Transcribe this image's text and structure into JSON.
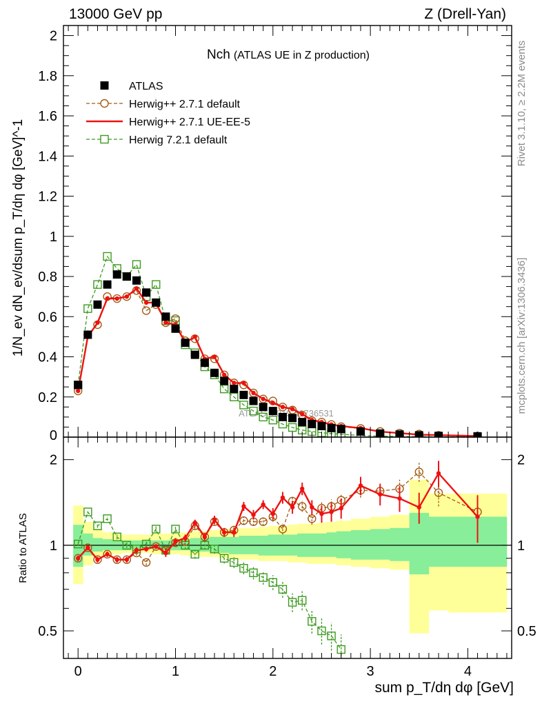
{
  "header": {
    "left": "13000 GeV pp",
    "right": "Z (Drell-Yan)"
  },
  "side_labels": {
    "rivet": "Rivet 3.1.10, ≥ 2.2M events",
    "mcplots": "mcplots.cern.ch [arXiv:1306.3436]"
  },
  "chart_data": [
    {
      "type": "scatter",
      "panel": "main",
      "title_main": "Nch",
      "title_sub": "(ATLAS UE in Z production)",
      "watermark": "ATLAS_2019_I1736531",
      "ylabel": "1/N_ev dN_ev/dsum p_T/dη dφ [GeV]^-1",
      "xlim": [
        -0.15,
        4.45
      ],
      "ylim": [
        0,
        2.05
      ],
      "yticks": [
        0.2,
        0.4,
        0.6,
        0.8,
        1,
        1.2,
        1.4,
        1.6,
        1.8,
        2
      ],
      "ytick_labels": [
        "0.2",
        "0.4",
        "0.6",
        "0.8",
        "1",
        "1.2",
        "1.4",
        "1.6",
        "1.8",
        "2"
      ],
      "partial_tick_label": "0",
      "legend_placement": "top-left",
      "x": [
        0.0,
        0.1,
        0.2,
        0.3,
        0.4,
        0.5,
        0.6,
        0.7,
        0.8,
        0.9,
        1.0,
        1.1,
        1.2,
        1.3,
        1.4,
        1.5,
        1.6,
        1.7,
        1.8,
        1.9,
        2.0,
        2.1,
        2.2,
        2.3,
        2.4,
        2.5,
        2.6,
        2.7,
        2.9,
        3.1,
        3.3,
        3.5,
        3.7,
        4.1
      ],
      "series": [
        {
          "name": "ATLAS",
          "color": "#000000",
          "marker": "square-filled",
          "values": [
            0.26,
            0.51,
            0.66,
            0.76,
            0.81,
            0.8,
            0.78,
            0.72,
            0.67,
            0.6,
            0.54,
            0.47,
            0.41,
            0.37,
            0.32,
            0.28,
            0.24,
            0.21,
            0.18,
            0.15,
            0.13,
            0.1,
            0.095,
            0.075,
            0.065,
            0.055,
            0.045,
            0.04,
            0.028,
            0.018,
            0.013,
            0.009,
            0.006,
            0.004
          ]
        },
        {
          "name": "Herwig++ 2.7.1 default",
          "color": "#a25b12",
          "marker": "circle-open",
          "line": "dashed",
          "values": [
            0.23,
            0.51,
            0.56,
            0.7,
            0.69,
            0.7,
            0.73,
            0.63,
            0.66,
            0.57,
            0.59,
            0.48,
            0.49,
            0.39,
            0.39,
            0.31,
            0.27,
            0.26,
            0.22,
            0.19,
            0.18,
            0.15,
            0.135,
            0.11,
            0.082,
            0.075,
            0.063,
            0.052,
            0.043,
            0.028,
            0.02,
            0.015,
            0.009,
            0.0055
          ]
        },
        {
          "name": "Herwig++ 2.7.1 UE-EE-5",
          "color": "#ee1111",
          "marker": "dot",
          "line": "solid",
          "values": [
            0.23,
            0.5,
            0.57,
            0.69,
            0.69,
            0.7,
            0.74,
            0.67,
            0.67,
            0.57,
            0.56,
            0.47,
            0.5,
            0.39,
            0.4,
            0.31,
            0.27,
            0.27,
            0.22,
            0.19,
            0.17,
            0.15,
            0.14,
            0.115,
            0.085,
            0.075,
            0.063,
            0.055,
            0.045,
            0.027,
            0.02,
            0.012,
            0.01,
            0.005
          ]
        },
        {
          "name": "Herwig 7.2.1 default",
          "color": "#3c9a1e",
          "marker": "square-open",
          "line": "dashed",
          "values": [
            0.26,
            0.64,
            0.76,
            0.9,
            0.84,
            0.8,
            0.86,
            0.7,
            0.76,
            0.58,
            0.58,
            0.46,
            0.42,
            0.35,
            0.31,
            0.24,
            0.2,
            0.16,
            0.13,
            0.1,
            0.085,
            0.065,
            0.048,
            0.035,
            0.028,
            0.022,
            0.017,
            0.014,
            0.008,
            0.005,
            0.003,
            0.002,
            0.0015,
            0.001
          ]
        }
      ]
    },
    {
      "type": "scatter",
      "panel": "ratio",
      "ylabel": "Ratio to ATLAS",
      "xlabel": "sum p_T/dη dφ [GeV]",
      "xlim": [
        -0.15,
        4.45
      ],
      "ylim": [
        0.4,
        2.4
      ],
      "log_y": true,
      "yticks": [
        0.5,
        1,
        2
      ],
      "ytick_labels": [
        "0.5",
        "1",
        "2"
      ],
      "xticks": [
        0,
        1,
        2,
        3,
        4
      ],
      "xtick_labels": [
        "0",
        "1",
        "2",
        "3",
        "4"
      ],
      "bands": {
        "edges": [
          -0.05,
          0.05,
          0.15,
          0.25,
          0.35,
          0.45,
          0.55,
          0.65,
          0.75,
          0.85,
          0.95,
          1.05,
          1.15,
          1.25,
          1.35,
          1.45,
          1.55,
          1.65,
          1.75,
          1.85,
          1.95,
          2.05,
          2.15,
          2.25,
          2.35,
          2.45,
          2.55,
          2.65,
          2.8,
          3.0,
          3.2,
          3.4,
          3.6,
          3.8,
          4.4
        ],
        "green_low": [
          0.84,
          0.92,
          0.95,
          0.96,
          0.96,
          0.96,
          0.97,
          0.97,
          0.97,
          0.96,
          0.96,
          0.96,
          0.95,
          0.95,
          0.94,
          0.94,
          0.93,
          0.93,
          0.93,
          0.92,
          0.92,
          0.92,
          0.92,
          0.91,
          0.91,
          0.91,
          0.91,
          0.9,
          0.89,
          0.89,
          0.88,
          0.79,
          0.84,
          0.84
        ],
        "green_high": [
          1.18,
          1.1,
          1.06,
          1.05,
          1.04,
          1.04,
          1.04,
          1.04,
          1.04,
          1.04,
          1.05,
          1.05,
          1.06,
          1.06,
          1.07,
          1.07,
          1.07,
          1.08,
          1.08,
          1.08,
          1.09,
          1.09,
          1.09,
          1.1,
          1.1,
          1.1,
          1.11,
          1.12,
          1.13,
          1.14,
          1.15,
          1.3,
          1.26,
          1.26
        ],
        "yellow_low": [
          0.73,
          0.85,
          0.91,
          0.92,
          0.93,
          0.94,
          0.94,
          0.94,
          0.93,
          0.93,
          0.93,
          0.92,
          0.92,
          0.91,
          0.91,
          0.9,
          0.9,
          0.89,
          0.89,
          0.88,
          0.88,
          0.88,
          0.87,
          0.87,
          0.86,
          0.86,
          0.86,
          0.85,
          0.84,
          0.83,
          0.82,
          0.49,
          0.59,
          0.58
        ],
        "yellow_high": [
          1.38,
          1.21,
          1.14,
          1.11,
          1.1,
          1.09,
          1.09,
          1.09,
          1.1,
          1.1,
          1.1,
          1.11,
          1.12,
          1.12,
          1.13,
          1.14,
          1.14,
          1.15,
          1.15,
          1.16,
          1.17,
          1.17,
          1.18,
          1.19,
          1.19,
          1.2,
          1.21,
          1.22,
          1.24,
          1.26,
          1.28,
          1.7,
          1.52,
          1.52
        ]
      },
      "series": [
        {
          "name": "Herwig++ 2.7.1 default",
          "color": "#a25b12",
          "marker": "circle-open",
          "line": "dashed",
          "values": [
            0.9,
            0.98,
            0.89,
            0.93,
            0.89,
            0.89,
            0.94,
            0.87,
            0.99,
            0.96,
            1.02,
            1.03,
            1.17,
            1.07,
            1.21,
            1.11,
            1.13,
            1.22,
            1.21,
            1.21,
            1.26,
            1.14,
            1.43,
            1.37,
            1.24,
            1.35,
            1.37,
            1.44,
            1.56,
            1.55,
            1.58,
            1.81,
            1.53,
            1.31
          ],
          "err": [
            0.02,
            0.02,
            0.02,
            0.02,
            0.02,
            0.02,
            0.02,
            0.02,
            0.02,
            0.02,
            0.02,
            0.03,
            0.03,
            0.03,
            0.03,
            0.03,
            0.04,
            0.04,
            0.04,
            0.04,
            0.05,
            0.05,
            0.06,
            0.06,
            0.06,
            0.07,
            0.08,
            0.08,
            0.09,
            0.1,
            0.12,
            0.14,
            0.16,
            0.2
          ]
        },
        {
          "name": "Herwig++ 2.7.1 UE-EE-5",
          "color": "#ee1111",
          "marker": "dot",
          "line": "solid",
          "values": [
            0.9,
            0.98,
            0.89,
            0.93,
            0.89,
            0.89,
            0.96,
            0.97,
            0.99,
            0.94,
            1.03,
            1.06,
            1.2,
            1.07,
            1.23,
            1.11,
            1.11,
            1.37,
            1.28,
            1.39,
            1.29,
            1.47,
            1.36,
            1.58,
            1.36,
            1.29,
            1.31,
            1.35,
            1.62,
            1.51,
            1.46,
            1.36,
            1.79,
            1.26
          ],
          "err": [
            0.02,
            0.02,
            0.02,
            0.02,
            0.02,
            0.02,
            0.02,
            0.02,
            0.02,
            0.03,
            0.03,
            0.03,
            0.03,
            0.03,
            0.04,
            0.04,
            0.04,
            0.05,
            0.05,
            0.05,
            0.06,
            0.07,
            0.07,
            0.08,
            0.08,
            0.09,
            0.1,
            0.11,
            0.12,
            0.13,
            0.15,
            0.17,
            0.19,
            0.24
          ]
        },
        {
          "name": "Herwig 7.2.1 default",
          "color": "#3c9a1e",
          "marker": "square-open",
          "line": "dashed",
          "values": [
            1.01,
            1.31,
            1.17,
            1.24,
            1.07,
            1.0,
            0.97,
            1.01,
            1.14,
            0.96,
            1.14,
            1.0,
            0.93,
            1.0,
            0.97,
            0.9,
            0.87,
            0.83,
            0.8,
            0.77,
            0.74,
            0.7,
            0.63,
            0.64,
            0.54,
            0.5,
            0.48,
            0.43
          ]
        }
      ]
    }
  ]
}
